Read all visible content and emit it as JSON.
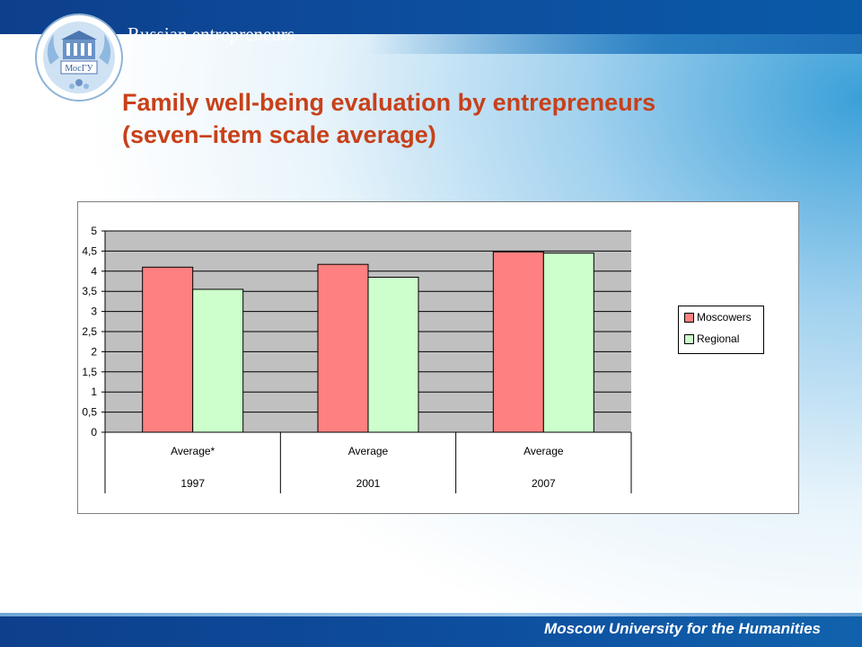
{
  "header": {
    "label": "Russian entrepreneurs"
  },
  "title": {
    "line1": "Family well-being evaluation by entrepreneurs",
    "line2": "(seven–item scale average)"
  },
  "footer": {
    "text": "Moscow University for the Humanities"
  },
  "logo": {
    "text": "МосГУ",
    "icon": "university-crest-icon"
  },
  "colors": {
    "moscowers": "#ff8080",
    "regional": "#ccffcc",
    "plot_bg": "#c0c0c0",
    "title": "#c8401a",
    "brand_blue": "#0d4e9e"
  },
  "chart_data": {
    "type": "bar",
    "categories": [
      "Average*",
      "Average",
      "Average"
    ],
    "years": [
      "1997",
      "2001",
      "2007"
    ],
    "series": [
      {
        "name": "Moscowers",
        "values": [
          4.1,
          4.17,
          4.48
        ]
      },
      {
        "name": "Regional",
        "values": [
          3.55,
          3.85,
          4.45
        ]
      }
    ],
    "yticks": [
      "0",
      "0,5",
      "1",
      "1,5",
      "2",
      "2,5",
      "3",
      "3,5",
      "4",
      "4,5",
      "5"
    ],
    "ylim": [
      0,
      5
    ],
    "grid": true,
    "legend": "right"
  }
}
